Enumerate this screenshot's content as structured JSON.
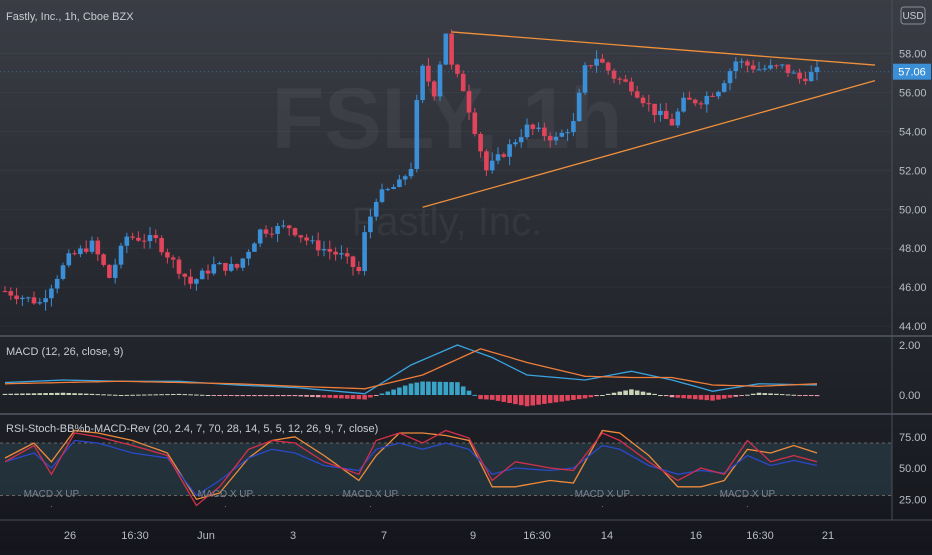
{
  "header": {
    "title": "Fastly, Inc., 1h, Cboe BZX",
    "currency": "USD"
  },
  "watermark": {
    "symbol": "FSLY, 1h",
    "name": "Fastly, Inc."
  },
  "colors": {
    "up": "#3a8fd6",
    "down": "#e2455b",
    "trend": "#f0903a",
    "macd_line": "#3aa3e0",
    "signal_line": "#ef7d3a",
    "rsi": "#d32f4a",
    "stoch": "#2a48c8",
    "bb": "#ef8a3a"
  },
  "chart_data": [
    {
      "type": "candlestick",
      "title": "Fastly, Inc., 1h, Cboe BZX",
      "price_axis": {
        "ticks": [
          44,
          46,
          48,
          50,
          52,
          54,
          56,
          58
        ],
        "ylim": [
          43.7,
          59.2
        ]
      },
      "last_price": 57.06,
      "last_price_label": "57.06",
      "x_ticks": [
        "26",
        "16:30",
        "Jun",
        "3",
        "7",
        "9",
        "16:30",
        "14",
        "16",
        "16:30",
        "21"
      ],
      "close_path": [
        [
          0,
          45.8
        ],
        [
          6,
          45.2
        ],
        [
          11,
          47.5
        ],
        [
          15,
          48.2
        ],
        [
          18,
          46.5
        ],
        [
          21,
          48.6
        ],
        [
          26,
          48.4
        ],
        [
          32,
          46.2
        ],
        [
          36,
          47.1
        ],
        [
          40,
          47.0
        ],
        [
          44,
          48.9
        ],
        [
          49,
          49.1
        ],
        [
          53,
          48.2
        ],
        [
          58,
          47.6
        ],
        [
          61,
          46.8
        ],
        [
          62,
          48.7
        ],
        [
          64,
          50.6
        ],
        [
          68,
          51.3
        ],
        [
          70,
          52.2
        ],
        [
          71,
          55.4
        ],
        [
          72,
          57.2
        ],
        [
          74,
          56.0
        ],
        [
          76,
          59.1
        ],
        [
          77,
          57.3
        ],
        [
          79,
          56.2
        ],
        [
          83,
          52.0
        ],
        [
          86,
          52.9
        ],
        [
          90,
          54.2
        ],
        [
          95,
          53.6
        ],
        [
          98,
          54.4
        ],
        [
          100,
          57.2
        ],
        [
          102,
          57.8
        ],
        [
          105,
          56.8
        ],
        [
          108,
          56.3
        ],
        [
          112,
          55.0
        ],
        [
          115,
          54.4
        ],
        [
          117,
          55.5
        ],
        [
          120,
          55.6
        ],
        [
          123,
          56.2
        ],
        [
          126,
          57.6
        ],
        [
          130,
          57.2
        ],
        [
          134,
          57.3
        ],
        [
          137,
          56.7
        ],
        [
          140,
          57.06
        ]
      ],
      "trendlines": [
        {
          "from": [
            72,
            50.1
          ],
          "to": [
            150,
            56.6
          ]
        },
        {
          "from": [
            77,
            59.1
          ],
          "to": [
            150,
            57.4
          ]
        }
      ]
    },
    {
      "type": "macd",
      "title": "MACD (12, 26, close, 9)",
      "ticks": [
        0.0,
        2.0
      ],
      "tick_labels": [
        "0.00",
        "2.00"
      ],
      "ylim": [
        -0.6,
        2.2
      ],
      "macd_path": [
        [
          0,
          0.5
        ],
        [
          10,
          0.6
        ],
        [
          20,
          0.55
        ],
        [
          30,
          0.55
        ],
        [
          40,
          0.4
        ],
        [
          50,
          0.3
        ],
        [
          62,
          0.05
        ],
        [
          70,
          1.2
        ],
        [
          78,
          2.0
        ],
        [
          84,
          1.5
        ],
        [
          90,
          0.8
        ],
        [
          100,
          0.6
        ],
        [
          108,
          0.95
        ],
        [
          115,
          0.6
        ],
        [
          122,
          0.15
        ],
        [
          130,
          0.45
        ],
        [
          140,
          0.4
        ]
      ],
      "signal_path": [
        [
          0,
          0.45
        ],
        [
          10,
          0.5
        ],
        [
          20,
          0.55
        ],
        [
          30,
          0.5
        ],
        [
          40,
          0.45
        ],
        [
          50,
          0.35
        ],
        [
          62,
          0.25
        ],
        [
          72,
          0.8
        ],
        [
          82,
          1.85
        ],
        [
          90,
          1.3
        ],
        [
          100,
          0.75
        ],
        [
          108,
          0.7
        ],
        [
          115,
          0.7
        ],
        [
          122,
          0.4
        ],
        [
          130,
          0.35
        ],
        [
          140,
          0.45
        ]
      ]
    },
    {
      "type": "oscillator",
      "title": "RSI-Stoch-BB%b-MACD-Rev (20, 2.4, 7, 70, 28, 14, 5, 5, 12, 26, 9, 7, close)",
      "ticks": [
        25,
        50,
        75
      ],
      "tick_labels": [
        "25.00",
        "50.00",
        "75.00"
      ],
      "ylim": [
        10,
        90
      ],
      "band": [
        28,
        70
      ],
      "signal_labels": [
        {
          "x": 8,
          "text": "MACD X UP"
        },
        {
          "x": 38,
          "text": "MACD X UP"
        },
        {
          "x": 63,
          "text": "MACD X UP"
        },
        {
          "x": 103,
          "text": "MACD X UP"
        },
        {
          "x": 128,
          "text": "MACD X UP"
        }
      ],
      "rsi_path": [
        [
          0,
          55
        ],
        [
          5,
          68
        ],
        [
          8,
          45
        ],
        [
          12,
          78
        ],
        [
          16,
          75
        ],
        [
          22,
          68
        ],
        [
          28,
          60
        ],
        [
          33,
          20
        ],
        [
          37,
          35
        ],
        [
          42,
          65
        ],
        [
          46,
          72
        ],
        [
          50,
          70
        ],
        [
          55,
          55
        ],
        [
          61,
          45
        ],
        [
          64,
          72
        ],
        [
          68,
          78
        ],
        [
          72,
          70
        ],
        [
          76,
          80
        ],
        [
          80,
          74
        ],
        [
          84,
          40
        ],
        [
          88,
          55
        ],
        [
          94,
          50
        ],
        [
          98,
          48
        ],
        [
          103,
          78
        ],
        [
          106,
          72
        ],
        [
          111,
          55
        ],
        [
          116,
          40
        ],
        [
          120,
          50
        ],
        [
          124,
          45
        ],
        [
          128,
          72
        ],
        [
          132,
          55
        ],
        [
          136,
          60
        ],
        [
          140,
          55
        ]
      ],
      "stoch_path": [
        [
          0,
          55
        ],
        [
          5,
          62
        ],
        [
          8,
          50
        ],
        [
          12,
          72
        ],
        [
          16,
          70
        ],
        [
          22,
          62
        ],
        [
          28,
          58
        ],
        [
          33,
          28
        ],
        [
          37,
          40
        ],
        [
          42,
          58
        ],
        [
          46,
          65
        ],
        [
          50,
          62
        ],
        [
          55,
          52
        ],
        [
          61,
          48
        ],
        [
          64,
          65
        ],
        [
          68,
          70
        ],
        [
          72,
          65
        ],
        [
          76,
          70
        ],
        [
          80,
          65
        ],
        [
          84,
          45
        ],
        [
          88,
          50
        ],
        [
          94,
          48
        ],
        [
          98,
          50
        ],
        [
          103,
          68
        ],
        [
          106,
          65
        ],
        [
          111,
          52
        ],
        [
          116,
          45
        ],
        [
          120,
          48
        ],
        [
          124,
          46
        ],
        [
          128,
          60
        ],
        [
          132,
          52
        ],
        [
          136,
          56
        ],
        [
          140,
          52
        ]
      ],
      "bb_path": [
        [
          0,
          58
        ],
        [
          5,
          70
        ],
        [
          8,
          55
        ],
        [
          12,
          80
        ],
        [
          16,
          78
        ],
        [
          22,
          72
        ],
        [
          28,
          62
        ],
        [
          33,
          25
        ],
        [
          37,
          30
        ],
        [
          42,
          58
        ],
        [
          46,
          72
        ],
        [
          50,
          75
        ],
        [
          55,
          60
        ],
        [
          61,
          40
        ],
        [
          64,
          60
        ],
        [
          68,
          78
        ],
        [
          72,
          78
        ],
        [
          76,
          76
        ],
        [
          80,
          72
        ],
        [
          84,
          35
        ],
        [
          88,
          35
        ],
        [
          94,
          40
        ],
        [
          98,
          38
        ],
        [
          103,
          80
        ],
        [
          106,
          78
        ],
        [
          111,
          60
        ],
        [
          116,
          35
        ],
        [
          120,
          35
        ],
        [
          124,
          40
        ],
        [
          128,
          65
        ],
        [
          132,
          62
        ],
        [
          136,
          68
        ],
        [
          140,
          62
        ]
      ]
    }
  ]
}
